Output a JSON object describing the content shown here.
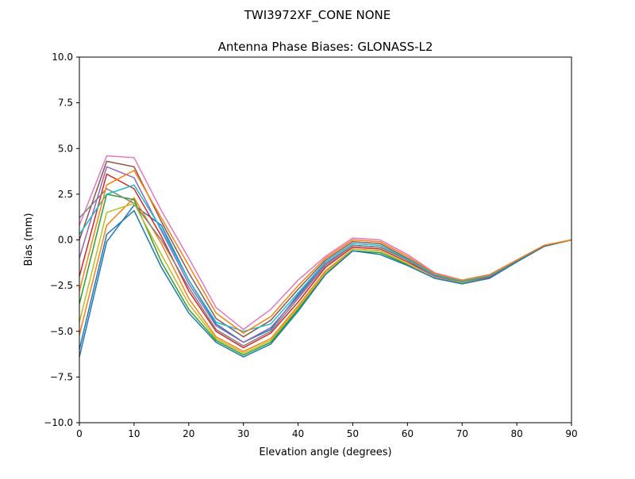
{
  "chart_data": {
    "type": "line",
    "suptitle": "TWI3972XF_CONE  NONE",
    "title": "Antenna Phase Biases: GLONASS-L2",
    "xlabel": "Elevation angle (degrees)",
    "ylabel": "Bias (mm)",
    "xlim": [
      0,
      90
    ],
    "ylim": [
      -10,
      10
    ],
    "xticks": [
      0,
      10,
      20,
      30,
      40,
      50,
      60,
      70,
      80,
      90
    ],
    "xtick_labels": [
      "0",
      "10",
      "20",
      "30",
      "40",
      "50",
      "60",
      "70",
      "80",
      "90"
    ],
    "yticks": [
      -10,
      -7.5,
      -5,
      -2.5,
      0,
      2.5,
      5,
      7.5,
      10
    ],
    "ytick_labels": [
      "−10.0",
      "−7.5",
      "−5.0",
      "−2.5",
      "0.0",
      "2.5",
      "5.0",
      "7.5",
      "10.0"
    ],
    "grid": false,
    "colors": [
      "#1f77b4",
      "#ff7f0e",
      "#2ca02c",
      "#d62728",
      "#9467bd",
      "#8c564b",
      "#e377c2",
      "#7f7f7f",
      "#bcbd22",
      "#17becf"
    ],
    "x": [
      0,
      5,
      10,
      15,
      20,
      25,
      30,
      35,
      40,
      45,
      50,
      55,
      60,
      65,
      70,
      75,
      80,
      85,
      90
    ],
    "series": [
      {
        "values": [
          -6.4,
          -0.1,
          1.9,
          0.8,
          -2.2,
          -4.6,
          -5.6,
          -4.9,
          -3.0,
          -1.3,
          -0.3,
          -0.4,
          -1.1,
          -2.0,
          -2.3,
          -2.0,
          -1.15,
          -0.33,
          0
        ]
      },
      {
        "values": [
          -5.2,
          0.8,
          2.3,
          -0.2,
          -3.2,
          -5.3,
          -6.1,
          -5.4,
          -3.6,
          -1.7,
          -0.5,
          -0.6,
          -1.3,
          -2.1,
          -2.35,
          -2.1,
          -1.2,
          -0.35,
          0
        ]
      },
      {
        "values": [
          -3.5,
          2.5,
          2.2,
          -1.2,
          -3.8,
          -5.5,
          -6.3,
          -5.6,
          -3.8,
          -1.8,
          -0.6,
          -0.7,
          -1.35,
          -2.1,
          -2.4,
          -2.1,
          -1.2,
          -0.35,
          0
        ]
      },
      {
        "values": [
          -2.0,
          3.6,
          2.8,
          0.2,
          -2.8,
          -5.0,
          -5.9,
          -5.1,
          -3.4,
          -1.5,
          -0.4,
          -0.5,
          -1.2,
          -2.0,
          -2.3,
          -2.05,
          -1.15,
          -0.33,
          0
        ]
      },
      {
        "values": [
          -1.0,
          4.0,
          3.4,
          0.5,
          -2.4,
          -4.7,
          -5.6,
          -4.8,
          -3.1,
          -1.3,
          -0.3,
          -0.4,
          -1.1,
          -1.95,
          -2.3,
          -2.0,
          -1.15,
          -0.32,
          0
        ]
      },
      {
        "values": [
          0.0,
          4.3,
          4.0,
          1.0,
          -1.8,
          -4.3,
          -5.3,
          -4.4,
          -2.7,
          -1.1,
          -0.1,
          -0.2,
          -1.0,
          -1.9,
          -2.25,
          -1.95,
          -1.1,
          -0.31,
          0
        ]
      },
      {
        "values": [
          0.8,
          4.6,
          4.5,
          1.6,
          -1.0,
          -3.7,
          -4.9,
          -3.8,
          -2.2,
          -0.9,
          0.1,
          0.0,
          -0.8,
          -1.8,
          -2.2,
          -1.9,
          -1.1,
          -0.3,
          0
        ]
      },
      {
        "values": [
          1.2,
          2.8,
          2.0,
          0.0,
          -2.6,
          -4.9,
          -5.8,
          -5.0,
          -3.2,
          -1.4,
          -0.3,
          -0.4,
          -1.1,
          -2.0,
          -2.3,
          -2.0,
          -1.15,
          -0.32,
          0
        ]
      },
      {
        "values": [
          -4.5,
          1.5,
          2.0,
          -0.8,
          -3.5,
          -5.4,
          -6.2,
          -5.5,
          -3.7,
          -1.8,
          -0.5,
          -0.6,
          -1.3,
          -2.1,
          -2.35,
          -2.1,
          -1.2,
          -0.34,
          0
        ]
      },
      {
        "values": [
          0.3,
          2.5,
          3.0,
          0.6,
          -2.2,
          -4.5,
          -5.0,
          -4.6,
          -2.9,
          -1.2,
          -0.2,
          -0.3,
          -1.05,
          -1.9,
          -2.25,
          -1.95,
          -1.1,
          -0.31,
          0
        ]
      },
      {
        "values": [
          -6.0,
          0.3,
          1.6,
          -1.5,
          -4.0,
          -5.6,
          -6.4,
          -5.7,
          -3.9,
          -1.9,
          -0.6,
          -0.8,
          -1.4,
          -2.1,
          -2.4,
          -2.1,
          -1.2,
          -0.35,
          0
        ]
      },
      {
        "values": [
          -2.8,
          3.0,
          3.8,
          1.2,
          -1.4,
          -4.0,
          -5.1,
          -4.2,
          -2.5,
          -1.0,
          0.0,
          -0.1,
          -0.9,
          -1.85,
          -2.2,
          -1.9,
          -1.1,
          -0.3,
          0
        ]
      }
    ]
  }
}
